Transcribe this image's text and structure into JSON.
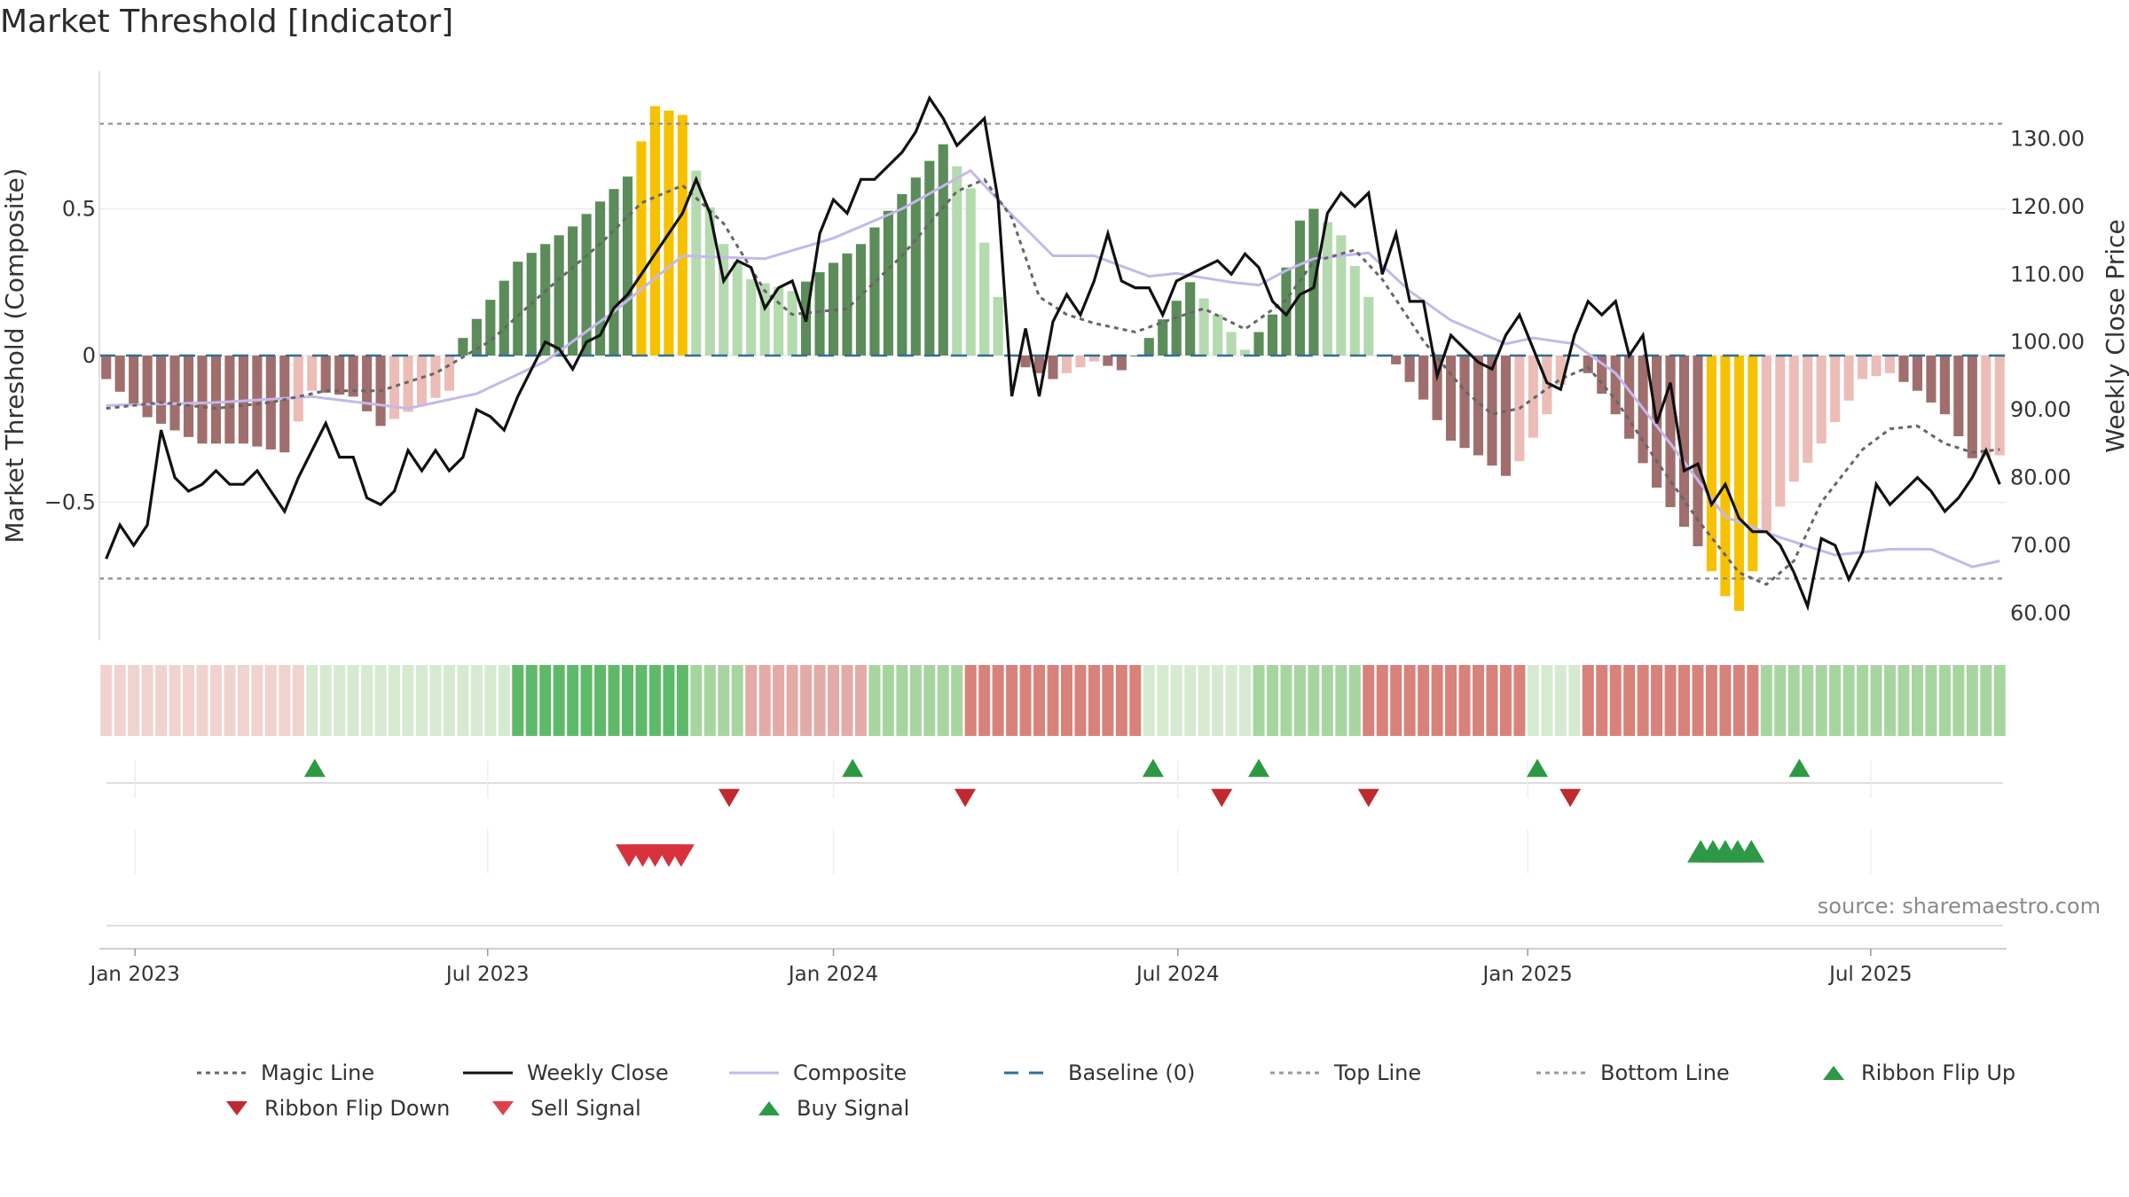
{
  "page_title": "Market Threshold [Indicator]",
  "source_text": "source: sharemaestro.com",
  "colors": {
    "bar_dark_green": "#5b8c5a",
    "bar_light_green": "#b5dab0",
    "bar_dark_red": "#a06e6c",
    "bar_light_red": "#ecbcb6",
    "bar_gold": "#f6c200",
    "close_line": "#111111",
    "composite_line": "#c4b8ec",
    "magic_line": "#666666",
    "baseline": "#2f6e9a",
    "buy": "#2e9945",
    "sell": "#d8323f"
  },
  "legend": [
    {
      "label": "Magic Line",
      "kind": "dotted",
      "color": "#666666"
    },
    {
      "label": "Weekly Close",
      "kind": "solid",
      "color": "#111111"
    },
    {
      "label": "Composite",
      "kind": "solid",
      "color": "#c4b8ec"
    },
    {
      "label": "Baseline (0)",
      "kind": "dashed",
      "color": "#2f6e9a"
    },
    {
      "label": "Top Line",
      "kind": "dotted",
      "color": "#999999"
    },
    {
      "label": "Bottom Line",
      "kind": "dotted",
      "color": "#999999"
    },
    {
      "label": "Ribbon Flip Up",
      "kind": "up",
      "color": "#2e9945"
    },
    {
      "label": "Ribbon Flip Down",
      "kind": "down",
      "color": "#c0292f"
    },
    {
      "label": "Sell Signal",
      "kind": "down",
      "color": "#e0404c"
    },
    {
      "label": "Buy Signal",
      "kind": "up",
      "color": "#2e9945"
    }
  ],
  "chart_data": {
    "type": "bar",
    "title": "Market Threshold [Indicator]",
    "ylabel": "Market Threshold (Composite)",
    "y2label": "Weekly Close Price",
    "ylim": [
      -0.97,
      0.97
    ],
    "y2lim": [
      56.0,
      140.0
    ],
    "yticks": [
      {
        "value": 0.5,
        "label": "0.5"
      },
      {
        "value": 0,
        "label": "0"
      },
      {
        "value": -0.5,
        "label": "−0.5"
      }
    ],
    "y2ticks": [
      {
        "value": 130,
        "label": "130.00"
      },
      {
        "value": 120,
        "label": "120.00"
      },
      {
        "value": 110,
        "label": "110.00"
      },
      {
        "value": 100,
        "label": "100.00"
      },
      {
        "value": 90,
        "label": "90.00"
      },
      {
        "value": 80,
        "label": "80.00"
      },
      {
        "value": 70,
        "label": "70.00"
      },
      {
        "value": 60,
        "label": "60.00"
      }
    ],
    "top_line": 0.79,
    "bottom_line": -0.76,
    "x_start": "2022-12-19",
    "week_count": 139,
    "xticks": [
      {
        "label": "Jan 2023",
        "week": 2.1
      },
      {
        "label": "Jul 2023",
        "week": 27.8
      },
      {
        "label": "Jan 2024",
        "week": 53.0
      },
      {
        "label": "Jul 2024",
        "week": 78.1
      },
      {
        "label": "Jan 2025",
        "week": 103.6
      },
      {
        "label": "Jul 2025",
        "week": 128.6
      }
    ],
    "composite_anchors": [
      [
        0,
        -0.08
      ],
      [
        3,
        -0.21
      ],
      [
        7,
        -0.3
      ],
      [
        10,
        -0.3
      ],
      [
        13,
        -0.33
      ],
      [
        15,
        -0.12
      ],
      [
        18,
        -0.14
      ],
      [
        20,
        -0.24
      ],
      [
        25,
        -0.12
      ],
      [
        26,
        0.06
      ],
      [
        30,
        0.32
      ],
      [
        34,
        0.44
      ],
      [
        38,
        0.61
      ],
      [
        40,
        0.85
      ],
      [
        42,
        0.82
      ],
      [
        43,
        0.63
      ],
      [
        45,
        0.38
      ],
      [
        47,
        0.26
      ],
      [
        50,
        0.22
      ],
      [
        55,
        0.38
      ],
      [
        58,
        0.55
      ],
      [
        61,
        0.72
      ],
      [
        63,
        0.57
      ],
      [
        65,
        0.2
      ],
      [
        66,
        0.0
      ],
      [
        67,
        -0.04
      ],
      [
        69,
        -0.08
      ],
      [
        72,
        -0.02
      ],
      [
        74,
        -0.05
      ],
      [
        75,
        0.0
      ],
      [
        76,
        0.06
      ],
      [
        79,
        0.25
      ],
      [
        81,
        0.14
      ],
      [
        83,
        0.02
      ],
      [
        85,
        0.14
      ],
      [
        87,
        0.46
      ],
      [
        88,
        0.5
      ],
      [
        90,
        0.41
      ],
      [
        92,
        0.2
      ],
      [
        93,
        0.0
      ],
      [
        94,
        -0.03
      ],
      [
        96,
        -0.15
      ],
      [
        98,
        -0.29
      ],
      [
        100,
        -0.34
      ],
      [
        102,
        -0.41
      ],
      [
        103,
        -0.36
      ],
      [
        105,
        -0.2
      ],
      [
        107,
        -0.0
      ],
      [
        108,
        -0.06
      ],
      [
        110,
        -0.2
      ],
      [
        113,
        -0.45
      ],
      [
        116,
        -0.65
      ],
      [
        118,
        -0.82
      ],
      [
        119,
        -0.87
      ],
      [
        121,
        -0.6
      ],
      [
        123,
        -0.43
      ],
      [
        125,
        -0.3
      ],
      [
        128,
        -0.08
      ],
      [
        130,
        -0.06
      ],
      [
        132,
        -0.12
      ],
      [
        134,
        -0.2
      ],
      [
        136,
        -0.35
      ],
      [
        138,
        -0.34
      ]
    ],
    "gold_weeks": [
      [
        39,
        42
      ],
      [
        117,
        120
      ]
    ],
    "close_anchors": [
      [
        0,
        68
      ],
      [
        1,
        73
      ],
      [
        2,
        70
      ],
      [
        3,
        73
      ],
      [
        4,
        87
      ],
      [
        5,
        80
      ],
      [
        6,
        78
      ],
      [
        7,
        79
      ],
      [
        8,
        81
      ],
      [
        9,
        79
      ],
      [
        10,
        79
      ],
      [
        11,
        81
      ],
      [
        12,
        78
      ],
      [
        13,
        75
      ],
      [
        14,
        80
      ],
      [
        15,
        84
      ],
      [
        16,
        88
      ],
      [
        17,
        83
      ],
      [
        18,
        83
      ],
      [
        19,
        77
      ],
      [
        20,
        76
      ],
      [
        21,
        78
      ],
      [
        22,
        84
      ],
      [
        23,
        81
      ],
      [
        24,
        84
      ],
      [
        25,
        81
      ],
      [
        26,
        83
      ],
      [
        27,
        90
      ],
      [
        28,
        89
      ],
      [
        29,
        87
      ],
      [
        30,
        92
      ],
      [
        31,
        96
      ],
      [
        32,
        100
      ],
      [
        33,
        99
      ],
      [
        34,
        96
      ],
      [
        35,
        100
      ],
      [
        36,
        101
      ],
      [
        37,
        105
      ],
      [
        38,
        107
      ],
      [
        39,
        110
      ],
      [
        40,
        113
      ],
      [
        41,
        116
      ],
      [
        42,
        119
      ],
      [
        43,
        124
      ],
      [
        44,
        119
      ],
      [
        45,
        109
      ],
      [
        46,
        112
      ],
      [
        47,
        111
      ],
      [
        48,
        105
      ],
      [
        49,
        108
      ],
      [
        50,
        109
      ],
      [
        51,
        103
      ],
      [
        52,
        116
      ],
      [
        53,
        121
      ],
      [
        54,
        119
      ],
      [
        55,
        124
      ],
      [
        56,
        124
      ],
      [
        57,
        126
      ],
      [
        58,
        128
      ],
      [
        59,
        131
      ],
      [
        60,
        136
      ],
      [
        61,
        133
      ],
      [
        62,
        129
      ],
      [
        63,
        131
      ],
      [
        64,
        133
      ],
      [
        65,
        121
      ],
      [
        66,
        92
      ],
      [
        67,
        102
      ],
      [
        68,
        92
      ],
      [
        69,
        103
      ],
      [
        70,
        107
      ],
      [
        71,
        104
      ],
      [
        72,
        109
      ],
      [
        73,
        116
      ],
      [
        74,
        109
      ],
      [
        75,
        108
      ],
      [
        76,
        108
      ],
      [
        77,
        104
      ],
      [
        78,
        109
      ],
      [
        79,
        110
      ],
      [
        80,
        111
      ],
      [
        81,
        112
      ],
      [
        82,
        110
      ],
      [
        83,
        113
      ],
      [
        84,
        111
      ],
      [
        85,
        106
      ],
      [
        86,
        104
      ],
      [
        87,
        107
      ],
      [
        88,
        108
      ],
      [
        89,
        119
      ],
      [
        90,
        122
      ],
      [
        91,
        120
      ],
      [
        92,
        122
      ],
      [
        93,
        110
      ],
      [
        94,
        116
      ],
      [
        95,
        106
      ],
      [
        96,
        106
      ],
      [
        97,
        95
      ],
      [
        98,
        101
      ],
      [
        99,
        99
      ],
      [
        100,
        97
      ],
      [
        101,
        96
      ],
      [
        102,
        101
      ],
      [
        103,
        104
      ],
      [
        104,
        99
      ],
      [
        105,
        94
      ],
      [
        106,
        93
      ],
      [
        107,
        101
      ],
      [
        108,
        106
      ],
      [
        109,
        104
      ],
      [
        110,
        106
      ],
      [
        111,
        98
      ],
      [
        112,
        101
      ],
      [
        113,
        88
      ],
      [
        114,
        94
      ],
      [
        115,
        81
      ],
      [
        116,
        82
      ],
      [
        117,
        76
      ],
      [
        118,
        79
      ],
      [
        119,
        74
      ],
      [
        120,
        72
      ],
      [
        121,
        72
      ],
      [
        122,
        70
      ],
      [
        123,
        66
      ],
      [
        124,
        61
      ],
      [
        125,
        71
      ],
      [
        126,
        70
      ],
      [
        127,
        65
      ],
      [
        128,
        69
      ],
      [
        129,
        79
      ],
      [
        130,
        76
      ],
      [
        131,
        78
      ],
      [
        132,
        80
      ],
      [
        133,
        78
      ],
      [
        134,
        75
      ],
      [
        135,
        77
      ],
      [
        136,
        80
      ],
      [
        137,
        84
      ],
      [
        138,
        79
      ]
    ],
    "composite_line_anchors": [
      [
        0,
        -0.17
      ],
      [
        8,
        -0.16
      ],
      [
        15,
        -0.14
      ],
      [
        22,
        -0.18
      ],
      [
        27,
        -0.13
      ],
      [
        32,
        -0.02
      ],
      [
        37,
        0.15
      ],
      [
        42,
        0.34
      ],
      [
        48,
        0.33
      ],
      [
        53,
        0.4
      ],
      [
        58,
        0.5
      ],
      [
        63,
        0.63
      ],
      [
        66,
        0.48
      ],
      [
        69,
        0.34
      ],
      [
        72,
        0.34
      ],
      [
        76,
        0.27
      ],
      [
        78,
        0.28
      ],
      [
        82,
        0.25
      ],
      [
        84,
        0.24
      ],
      [
        86,
        0.29
      ],
      [
        88,
        0.33
      ],
      [
        92,
        0.35
      ],
      [
        95,
        0.22
      ],
      [
        98,
        0.12
      ],
      [
        102,
        0.04
      ],
      [
        104,
        0.06
      ],
      [
        107,
        0.04
      ],
      [
        110,
        -0.06
      ],
      [
        114,
        -0.3
      ],
      [
        118,
        -0.55
      ],
      [
        122,
        -0.62
      ],
      [
        126,
        -0.68
      ],
      [
        130,
        -0.66
      ],
      [
        133,
        -0.66
      ],
      [
        136,
        -0.72
      ],
      [
        138,
        -0.7
      ]
    ],
    "magic_anchors": [
      [
        0,
        -0.18
      ],
      [
        4,
        -0.16
      ],
      [
        8,
        -0.18
      ],
      [
        12,
        -0.16
      ],
      [
        16,
        -0.12
      ],
      [
        20,
        -0.12
      ],
      [
        24,
        -0.06
      ],
      [
        28,
        0.05
      ],
      [
        32,
        0.22
      ],
      [
        36,
        0.38
      ],
      [
        39,
        0.52
      ],
      [
        42,
        0.58
      ],
      [
        45,
        0.45
      ],
      [
        48,
        0.22
      ],
      [
        50,
        0.14
      ],
      [
        54,
        0.16
      ],
      [
        58,
        0.34
      ],
      [
        62,
        0.56
      ],
      [
        64,
        0.6
      ],
      [
        66,
        0.47
      ],
      [
        68,
        0.2
      ],
      [
        70,
        0.14
      ],
      [
        72,
        0.11
      ],
      [
        75,
        0.08
      ],
      [
        78,
        0.13
      ],
      [
        80,
        0.16
      ],
      [
        83,
        0.09
      ],
      [
        86,
        0.19
      ],
      [
        88,
        0.32
      ],
      [
        91,
        0.36
      ],
      [
        93,
        0.26
      ],
      [
        96,
        0.05
      ],
      [
        99,
        -0.12
      ],
      [
        101,
        -0.2
      ],
      [
        103,
        -0.18
      ],
      [
        106,
        -0.08
      ],
      [
        108,
        -0.04
      ],
      [
        110,
        -0.15
      ],
      [
        113,
        -0.36
      ],
      [
        116,
        -0.56
      ],
      [
        119,
        -0.74
      ],
      [
        121,
        -0.78
      ],
      [
        123,
        -0.7
      ],
      [
        125,
        -0.5
      ],
      [
        128,
        -0.32
      ],
      [
        130,
        -0.25
      ],
      [
        132,
        -0.24
      ],
      [
        134,
        -0.3
      ],
      [
        136,
        -0.33
      ],
      [
        138,
        -0.32
      ]
    ],
    "ribbon": [
      {
        "from": 0,
        "to": 15,
        "color": "#f0d2cf"
      },
      {
        "from": 15,
        "to": 30,
        "color": "#d6ead1"
      },
      {
        "from": 30,
        "to": 43,
        "color": "#5fb96a"
      },
      {
        "from": 43,
        "to": 47,
        "color": "#a7d5a0"
      },
      {
        "from": 47,
        "to": 56,
        "color": "#e4aaa6"
      },
      {
        "from": 56,
        "to": 63,
        "color": "#a7d5a0"
      },
      {
        "from": 63,
        "to": 76,
        "color": "#d9817b"
      },
      {
        "from": 76,
        "to": 84,
        "color": "#d6ead1"
      },
      {
        "from": 84,
        "to": 92,
        "color": "#a7d5a0"
      },
      {
        "from": 92,
        "to": 104,
        "color": "#d9817b"
      },
      {
        "from": 104,
        "to": 108,
        "color": "#d6ead1"
      },
      {
        "from": 108,
        "to": 121,
        "color": "#d9817b"
      },
      {
        "from": 121,
        "to": 139,
        "color": "#a7d5a0"
      }
    ],
    "ribbon_flip_up_weeks": [
      15.2,
      54.4,
      76.3,
      84.0,
      104.3,
      123.4
    ],
    "ribbon_flip_down_weeks": [
      45.4,
      62.6,
      81.3,
      92.0,
      106.7
    ],
    "sell_signal_weeks": [
      38.1,
      39.1,
      40.0,
      41.0,
      41.9
    ],
    "buy_signal_weeks": [
      116.2,
      117.1,
      118.0,
      118.9,
      119.9
    ]
  }
}
